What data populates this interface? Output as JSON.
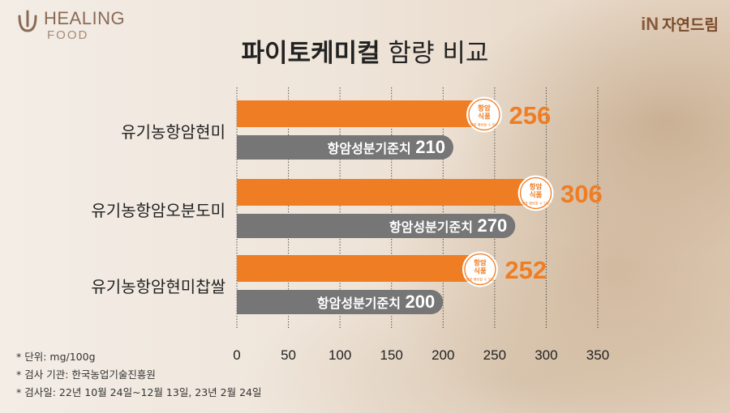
{
  "brand_left": {
    "word1": "HEALING",
    "word2": "FOOD"
  },
  "brand_right": {
    "mark": "iN",
    "name": "자연드림"
  },
  "title": {
    "bold": "파이토케미컬",
    "normal": "함량 비교"
  },
  "notes": [
    "* 단위: mg/100g",
    "* 검사 기관: 한국농업기술진흥원",
    "* 검사일: 22년 10월 24일~12월 13일, 23년 2월 24일"
  ],
  "colors": {
    "accent": "#ef7d23",
    "reference": "#767676",
    "badge": "#f07a1e"
  },
  "badge": {
    "line1": "항암",
    "line2": "식품",
    "line3": "암을 예방할 수 있는"
  },
  "chart_data": {
    "type": "bar",
    "orientation": "horizontal",
    "categories": [
      "유기농항암현미",
      "유기농항암오분도미",
      "유기농항암현미찹쌀"
    ],
    "series": [
      {
        "values": [
          256,
          306,
          252
        ]
      },
      {
        "name": "항암성분기준치",
        "values": [
          210,
          270,
          200
        ]
      }
    ],
    "xlim": [
      0,
      350
    ],
    "xticks": [
      0,
      50,
      100,
      150,
      200,
      250,
      300,
      350
    ],
    "grid": true
  }
}
